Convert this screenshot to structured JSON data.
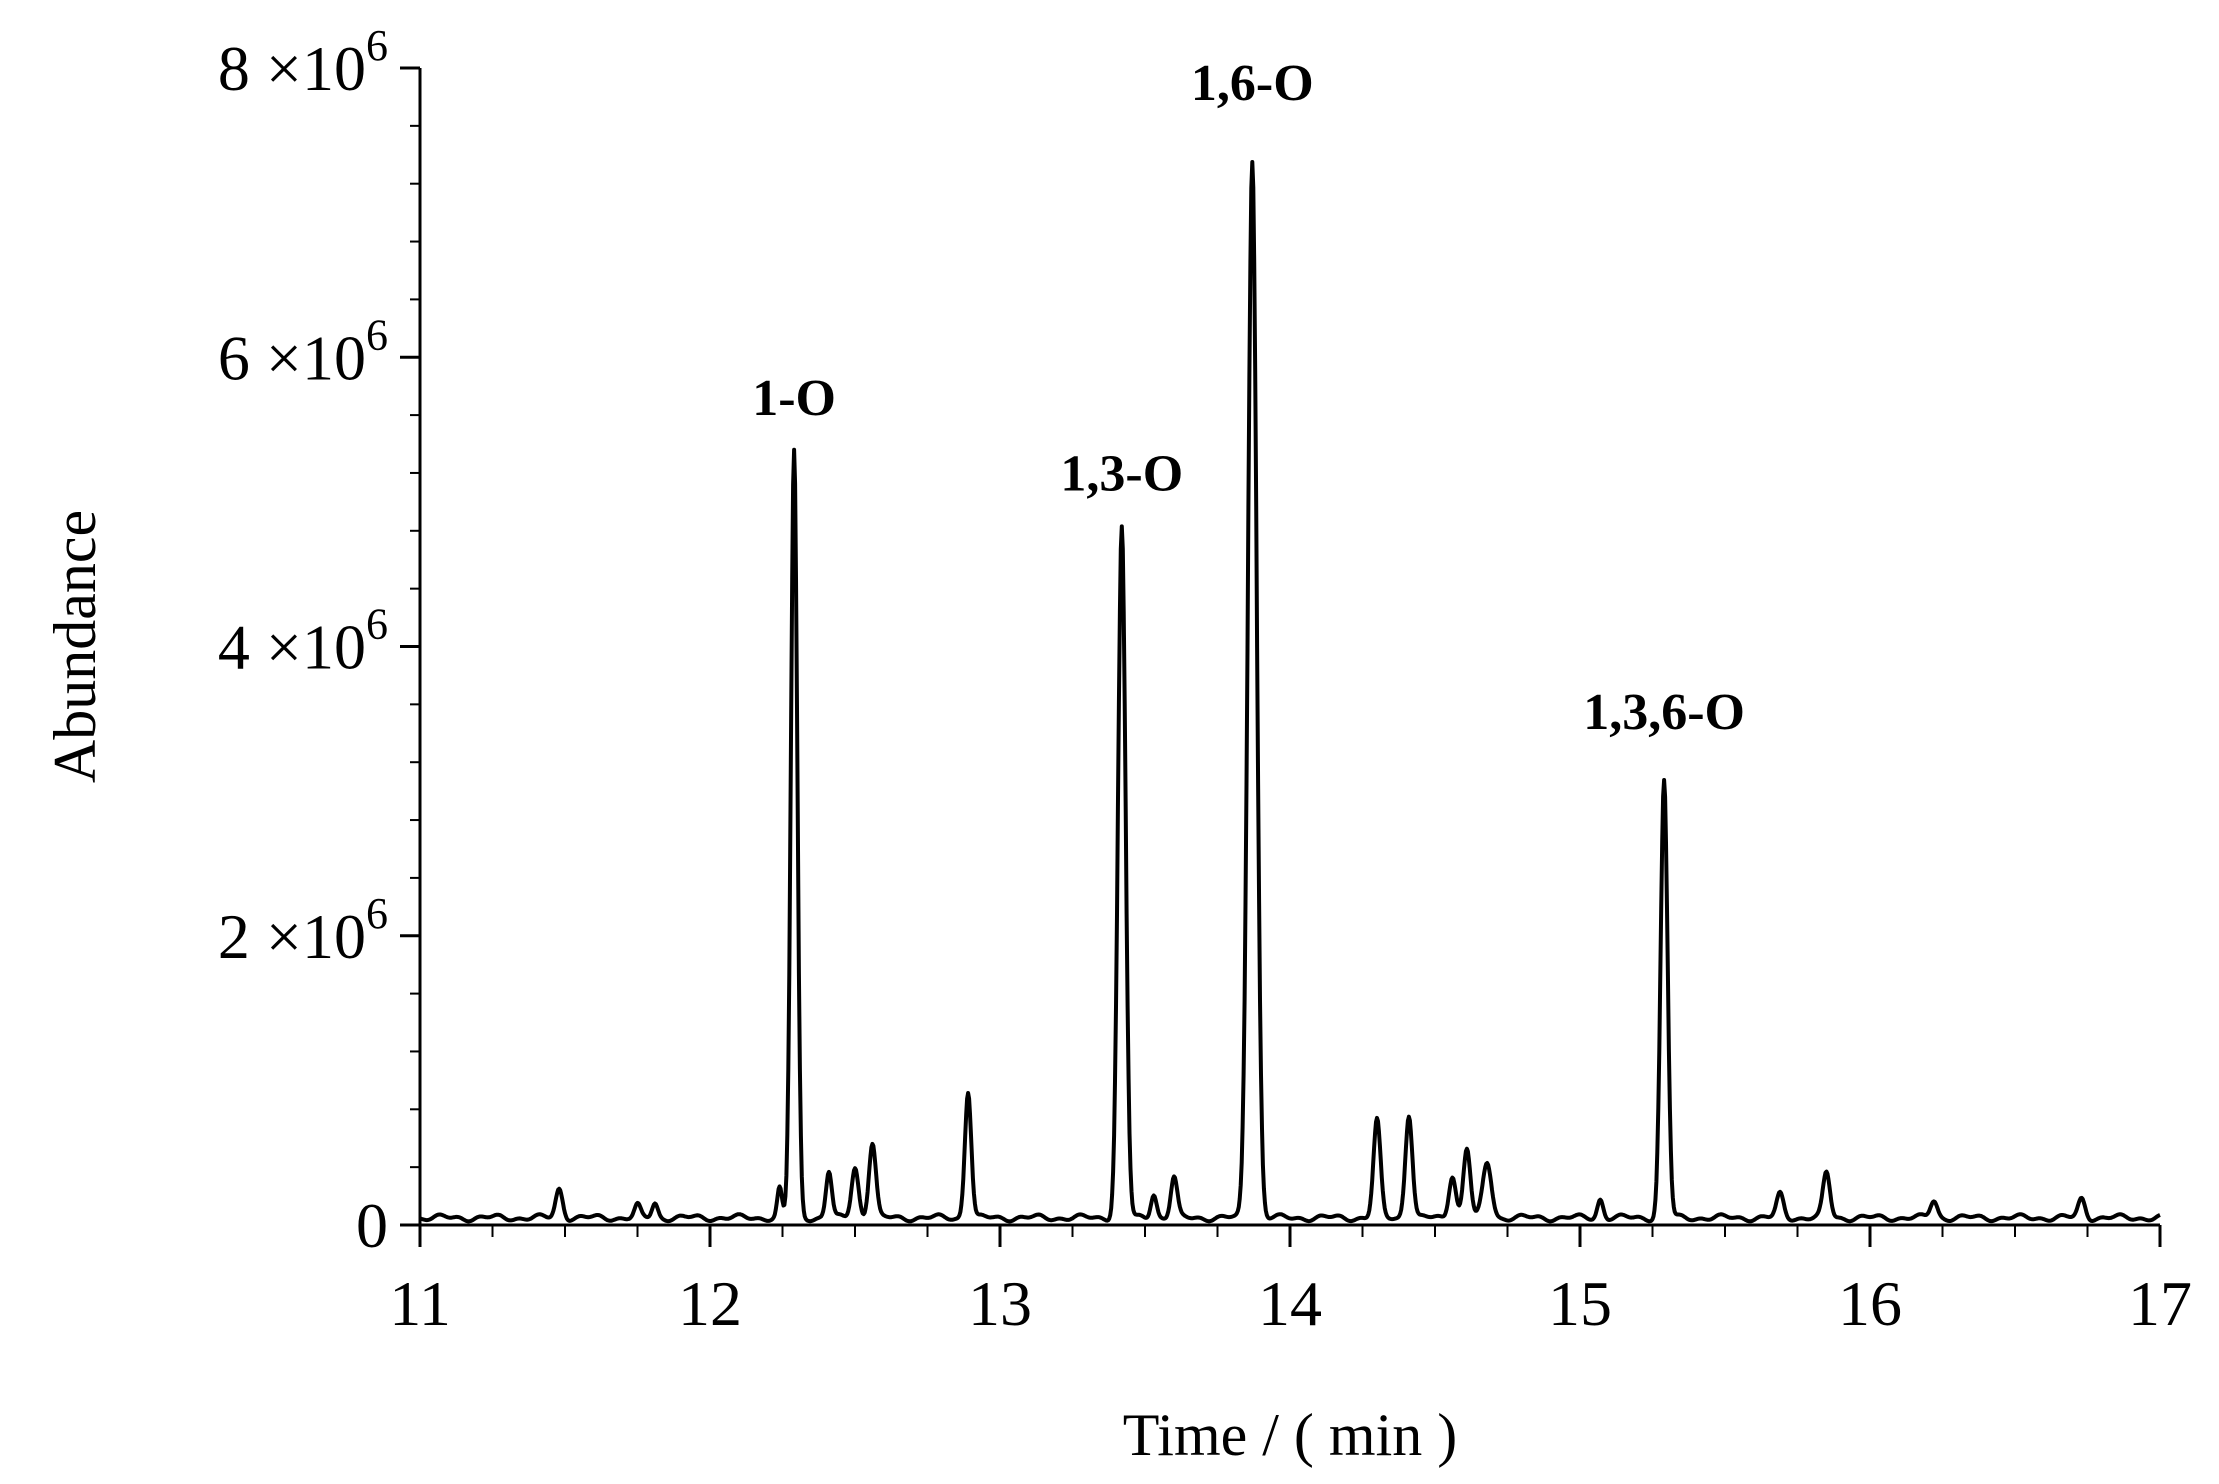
{
  "chart_data": {
    "type": "line",
    "title": "",
    "xlabel": "Time / ( min )",
    "ylabel": "Abundance",
    "xlim": [
      11,
      17
    ],
    "ylim": [
      0,
      8000000
    ],
    "grid": false,
    "legend": "none",
    "x_ticks": [
      {
        "value": 11,
        "label": "11"
      },
      {
        "value": 12,
        "label": "12"
      },
      {
        "value": 13,
        "label": "13"
      },
      {
        "value": 14,
        "label": "14"
      },
      {
        "value": 15,
        "label": "15"
      },
      {
        "value": 16,
        "label": "16"
      },
      {
        "value": 17,
        "label": "17"
      }
    ],
    "y_ticks": [
      {
        "value": 0,
        "label": "0"
      },
      {
        "value": 2000000,
        "mantissa": "2",
        "times": "×10",
        "exp": "6"
      },
      {
        "value": 4000000,
        "mantissa": "4",
        "times": "×10",
        "exp": "6"
      },
      {
        "value": 6000000,
        "mantissa": "6",
        "times": "×10",
        "exp": "6"
      },
      {
        "value": 8000000,
        "mantissa": "8",
        "times": "×10",
        "exp": "6"
      }
    ],
    "color": "#000000",
    "baseline": 50000,
    "peaks": [
      {
        "t": 11.48,
        "h": 200000,
        "w": 0.012
      },
      {
        "t": 11.75,
        "h": 80000,
        "w": 0.01
      },
      {
        "t": 11.81,
        "h": 100000,
        "w": 0.01
      },
      {
        "t": 12.24,
        "h": 200000,
        "w": 0.008
      },
      {
        "t": 12.29,
        "h": 5300000,
        "w": 0.011
      },
      {
        "t": 12.41,
        "h": 320000,
        "w": 0.01
      },
      {
        "t": 12.5,
        "h": 350000,
        "w": 0.012
      },
      {
        "t": 12.56,
        "h": 520000,
        "w": 0.012
      },
      {
        "t": 12.89,
        "h": 880000,
        "w": 0.011
      },
      {
        "t": 13.42,
        "h": 4770000,
        "w": 0.013
      },
      {
        "t": 13.53,
        "h": 170000,
        "w": 0.01
      },
      {
        "t": 13.6,
        "h": 280000,
        "w": 0.011
      },
      {
        "t": 13.87,
        "h": 7320000,
        "w": 0.015
      },
      {
        "t": 14.3,
        "h": 670000,
        "w": 0.012
      },
      {
        "t": 14.41,
        "h": 720000,
        "w": 0.012
      },
      {
        "t": 14.56,
        "h": 300000,
        "w": 0.012
      },
      {
        "t": 14.61,
        "h": 480000,
        "w": 0.012
      },
      {
        "t": 14.68,
        "h": 380000,
        "w": 0.015
      },
      {
        "t": 15.07,
        "h": 130000,
        "w": 0.01
      },
      {
        "t": 15.29,
        "h": 3020000,
        "w": 0.012
      },
      {
        "t": 15.69,
        "h": 160000,
        "w": 0.012
      },
      {
        "t": 15.85,
        "h": 310000,
        "w": 0.012
      },
      {
        "t": 16.22,
        "h": 120000,
        "w": 0.012
      },
      {
        "t": 16.73,
        "h": 130000,
        "w": 0.012
      }
    ],
    "annotations": [
      {
        "text": "1-O",
        "x": 12.29,
        "y": 5600000
      },
      {
        "text": "1,3-O",
        "x": 13.42,
        "y": 5080000
      },
      {
        "text": "1,6-O",
        "x": 13.87,
        "y": 7780000
      },
      {
        "text": "1,3,6-O",
        "x": 15.29,
        "y": 3430000
      }
    ]
  }
}
